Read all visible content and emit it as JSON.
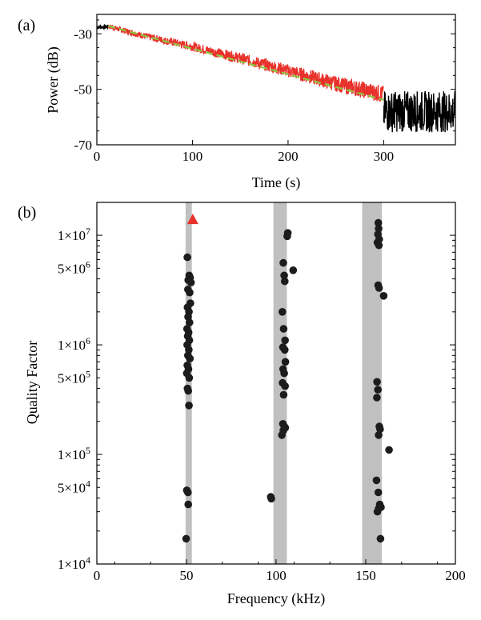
{
  "chart_data": [
    {
      "type": "line",
      "panel_label": "(a)",
      "xlabel": "Time (s)",
      "ylabel": "Power (dB)",
      "xlim": [
        0,
        375
      ],
      "ylim": [
        -70,
        -23
      ],
      "x_ticks": [
        0,
        100,
        200,
        300
      ],
      "y_ticks": [
        -30,
        -50,
        -70
      ],
      "grid": false,
      "series": [
        {
          "role": "raw-signal",
          "color": "#000000",
          "segments": [
            {
              "x": [
                0,
                12
              ],
              "y": [
                -27.5,
                -27.5
              ]
            },
            {
              "x": [
                300,
                375
              ],
              "y": [
                -58,
                -58
              ]
            }
          ]
        },
        {
          "role": "selected-decay",
          "color": "#e8312a",
          "x": [
            12,
            50,
            100,
            150,
            200,
            250,
            300
          ],
          "y": [
            -27.3,
            -30.8,
            -34.6,
            -38.8,
            -43.3,
            -48.0,
            -51.8
          ]
        },
        {
          "role": "fit",
          "color": "#8cc63f",
          "style": "dashed",
          "x": [
            12,
            300
          ],
          "y": [
            -27.2,
            -53.8
          ]
        }
      ]
    },
    {
      "type": "scatter",
      "panel_label": "(b)",
      "xlabel": "Frequency (kHz)",
      "ylabel": "Quality Factor",
      "xlim": [
        0,
        200
      ],
      "ylim_log10": [
        4,
        7.3
      ],
      "y_scale": "log",
      "x_ticks": [
        0,
        50,
        100,
        150,
        200
      ],
      "y_tick_labels": [
        {
          "value": 10000000,
          "mantissa": "1",
          "exponent": "7"
        },
        {
          "value": 5000000,
          "mantissa": "5",
          "exponent": "6"
        },
        {
          "value": 1000000,
          "mantissa": "1",
          "exponent": "6"
        },
        {
          "value": 500000,
          "mantissa": "5",
          "exponent": "5"
        },
        {
          "value": 100000,
          "mantissa": "1",
          "exponent": "5"
        },
        {
          "value": 50000,
          "mantissa": "5",
          "exponent": "4"
        },
        {
          "value": 10000,
          "mantissa": "1",
          "exponent": "4"
        }
      ],
      "bands": [
        {
          "x0": 49.5,
          "x1": 53
        },
        {
          "x0": 98.5,
          "x1": 106
        },
        {
          "x0": 148,
          "x1": 159
        }
      ],
      "highlight": {
        "x": 53.5,
        "y": 14000000,
        "marker": "triangle",
        "color": "#e8312a"
      },
      "points": [
        {
          "x": 50.5,
          "y": 6300000
        },
        {
          "x": 51.5,
          "y": 4300000
        },
        {
          "x": 52,
          "y": 4100000
        },
        {
          "x": 51,
          "y": 3900000
        },
        {
          "x": 52.5,
          "y": 3700000
        },
        {
          "x": 50.8,
          "y": 3200000
        },
        {
          "x": 51.8,
          "y": 3000000
        },
        {
          "x": 52.2,
          "y": 2400000
        },
        {
          "x": 50.6,
          "y": 2200000
        },
        {
          "x": 51.4,
          "y": 2000000
        },
        {
          "x": 50.9,
          "y": 1800000
        },
        {
          "x": 51.7,
          "y": 1600000
        },
        {
          "x": 50.3,
          "y": 1400000
        },
        {
          "x": 51.2,
          "y": 1300000
        },
        {
          "x": 50.7,
          "y": 1200000
        },
        {
          "x": 51.6,
          "y": 1100000
        },
        {
          "x": 50.4,
          "y": 1000000
        },
        {
          "x": 51.3,
          "y": 900000
        },
        {
          "x": 50.8,
          "y": 800000
        },
        {
          "x": 51.9,
          "y": 750000
        },
        {
          "x": 50.5,
          "y": 650000
        },
        {
          "x": 51.1,
          "y": 600000
        },
        {
          "x": 50.2,
          "y": 550000
        },
        {
          "x": 51.5,
          "y": 500000
        },
        {
          "x": 50.6,
          "y": 400000
        },
        {
          "x": 51.0,
          "y": 380000
        },
        {
          "x": 51.4,
          "y": 280000
        },
        {
          "x": 50.2,
          "y": 47000
        },
        {
          "x": 50.8,
          "y": 45000
        },
        {
          "x": 51.0,
          "y": 35000
        },
        {
          "x": 49.8,
          "y": 17000
        },
        {
          "x": 106.5,
          "y": 10500000
        },
        {
          "x": 106.2,
          "y": 9800000
        },
        {
          "x": 104,
          "y": 5600000
        },
        {
          "x": 104.5,
          "y": 4300000
        },
        {
          "x": 109.5,
          "y": 4800000
        },
        {
          "x": 104.8,
          "y": 3800000
        },
        {
          "x": 103.5,
          "y": 2000000
        },
        {
          "x": 104.2,
          "y": 1400000
        },
        {
          "x": 105,
          "y": 1100000
        },
        {
          "x": 103.8,
          "y": 950000
        },
        {
          "x": 104.8,
          "y": 900000
        },
        {
          "x": 105.2,
          "y": 700000
        },
        {
          "x": 103.9,
          "y": 600000
        },
        {
          "x": 104.5,
          "y": 550000
        },
        {
          "x": 103.6,
          "y": 450000
        },
        {
          "x": 105,
          "y": 420000
        },
        {
          "x": 104.2,
          "y": 350000
        },
        {
          "x": 103.8,
          "y": 190000
        },
        {
          "x": 104.6,
          "y": 180000
        },
        {
          "x": 105.1,
          "y": 175000
        },
        {
          "x": 104.0,
          "y": 165000
        },
        {
          "x": 103.2,
          "y": 150000
        },
        {
          "x": 97,
          "y": 41000
        },
        {
          "x": 97.3,
          "y": 39500
        },
        {
          "x": 157,
          "y": 13000000
        },
        {
          "x": 157.2,
          "y": 11500000
        },
        {
          "x": 156.8,
          "y": 10200000
        },
        {
          "x": 157.5,
          "y": 9200000
        },
        {
          "x": 156.5,
          "y": 8600000
        },
        {
          "x": 157.3,
          "y": 8100000
        },
        {
          "x": 156.9,
          "y": 3500000
        },
        {
          "x": 157.4,
          "y": 3300000
        },
        {
          "x": 160,
          "y": 2800000
        },
        {
          "x": 156.3,
          "y": 460000
        },
        {
          "x": 156.8,
          "y": 390000
        },
        {
          "x": 156.2,
          "y": 330000
        },
        {
          "x": 157.6,
          "y": 180000
        },
        {
          "x": 158.0,
          "y": 170000
        },
        {
          "x": 157.2,
          "y": 150000
        },
        {
          "x": 163,
          "y": 110000
        },
        {
          "x": 156.0,
          "y": 58000
        },
        {
          "x": 157.0,
          "y": 45000
        },
        {
          "x": 157.8,
          "y": 35000
        },
        {
          "x": 157.2,
          "y": 32000
        },
        {
          "x": 158.5,
          "y": 33000
        },
        {
          "x": 156.5,
          "y": 30000
        },
        {
          "x": 158.2,
          "y": 17000
        }
      ]
    }
  ]
}
